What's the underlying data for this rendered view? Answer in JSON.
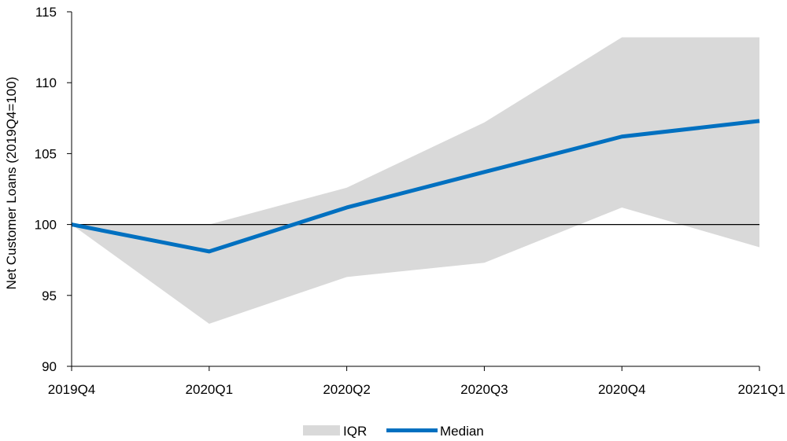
{
  "chart_data": {
    "type": "area",
    "title": "",
    "xlabel": "",
    "ylabel": "Net Customer Loans (2019Q4=100)",
    "categories": [
      "2019Q4",
      "2020Q1",
      "2020Q2",
      "2020Q3",
      "2020Q4",
      "2021Q1"
    ],
    "ylim": [
      90,
      115
    ],
    "yticks": [
      90,
      95,
      100,
      105,
      110,
      115
    ],
    "reference_line": 100,
    "grid": false,
    "legend_position": "bottom-center",
    "series": [
      {
        "name": "IQR",
        "type": "band",
        "low": [
          100,
          93.0,
          96.3,
          97.3,
          101.2,
          98.4
        ],
        "high": [
          100,
          100.0,
          102.6,
          107.2,
          113.2,
          113.2
        ],
        "color": "#d9d9d9"
      },
      {
        "name": "Median",
        "type": "line",
        "values": [
          100,
          98.1,
          101.2,
          103.7,
          106.2,
          107.3
        ],
        "color": "#0070c0"
      }
    ]
  }
}
